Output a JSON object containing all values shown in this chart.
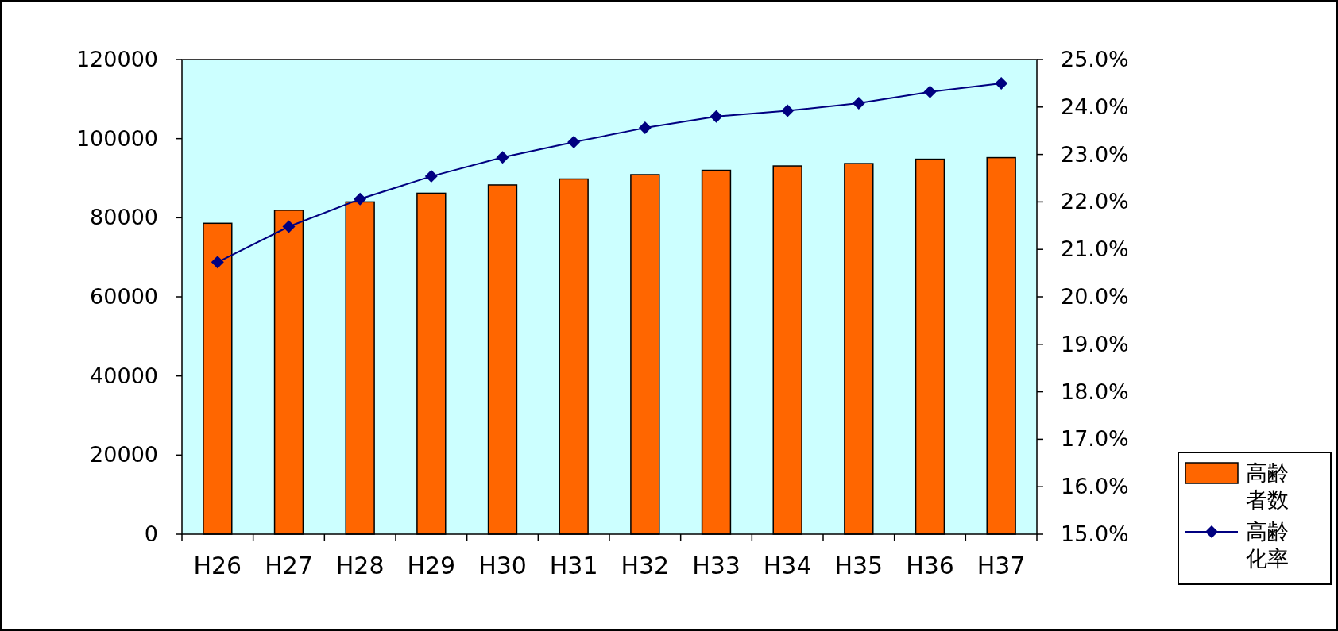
{
  "chart_data": {
    "type": "bar",
    "categories": [
      "H26",
      "H27",
      "H28",
      "H29",
      "H30",
      "H31",
      "H32",
      "H33",
      "H34",
      "H35",
      "H36",
      "H37"
    ],
    "series": [
      {
        "name": "高齢者数",
        "color": "#ff6600",
        "values": [
          78600,
          81900,
          84000,
          86200,
          88300,
          89800,
          90900,
          92000,
          93100,
          93700,
          94800,
          95200
        ]
      },
      {
        "name": "高齢化率",
        "type": "line",
        "axis": "y2",
        "color": "#000080",
        "values": [
          20.73,
          21.48,
          22.06,
          22.54,
          22.94,
          23.26,
          23.56,
          23.8,
          23.92,
          24.08,
          24.32,
          24.5
        ]
      }
    ],
    "ylim": [
      0,
      120000
    ],
    "yticks": [
      0,
      20000,
      40000,
      60000,
      80000,
      100000,
      120000
    ],
    "y2lim": [
      15,
      25
    ],
    "y2ticks": [
      {
        "value": 15,
        "label": "15.0%"
      },
      {
        "value": 16,
        "label": "16.0%"
      },
      {
        "value": 17,
        "label": "17.0%"
      },
      {
        "value": 18,
        "label": "18.0%"
      },
      {
        "value": 19,
        "label": "19.0%"
      },
      {
        "value": 20,
        "label": "20.0%"
      },
      {
        "value": 21,
        "label": "21.0%"
      },
      {
        "value": 22,
        "label": "22.0%"
      },
      {
        "value": 23,
        "label": "23.0%"
      },
      {
        "value": 24,
        "label": "24.0%"
      },
      {
        "value": 25,
        "label": "25.0%"
      }
    ],
    "marker": "diamond",
    "legend": "bottom right"
  }
}
